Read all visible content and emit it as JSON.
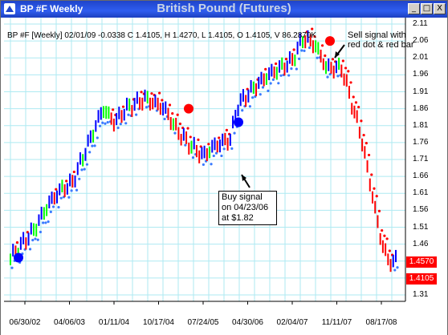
{
  "window": {
    "name": "BP #F Weekly",
    "title": "British Pound (Futures)",
    "buttons": {
      "minimize": "_",
      "maximize": "□",
      "close": "X"
    }
  },
  "info_line": "BP #F [Weekly] 02/01/09 -0.0338 C 1.4105, H 1.4270, L 1.4105, O 1.4105, V 86.2870K",
  "annotations": {
    "sell": [
      "Sell signal with",
      "red dot & red bar"
    ],
    "buy": [
      "Buy signal",
      "on 04/23/06",
      "at $1.82"
    ]
  },
  "price_badges": [
    "1.4570",
    "1.4105"
  ],
  "colors": {
    "up": "#0000ff",
    "down": "#ff0000",
    "neutral": "#00ff00",
    "grid": "#aeeaf2",
    "titlebar": "#2a54e8"
  },
  "chart_data": {
    "type": "bar",
    "ylabels": [
      "2.11",
      "2.06",
      "2.01",
      "1.96",
      "1.91",
      "1.86",
      "1.81",
      "1.76",
      "1.71",
      "1.66",
      "1.61",
      "1.56",
      "1.51",
      "1.46",
      "1.41",
      "1.36",
      "1.31"
    ],
    "xlabels": [
      "06/30/02",
      "04/06/03",
      "01/11/04",
      "10/17/04",
      "07/24/05",
      "04/30/06",
      "02/04/07",
      "11/11/07",
      "08/17/08"
    ],
    "ylim": [
      1.31,
      2.11
    ],
    "grid": true,
    "signals": [
      {
        "type": "buy",
        "date": "04/23/06",
        "price": 1.82
      },
      {
        "type": "sell",
        "date": "11/11/07",
        "price": 2.06
      }
    ],
    "series_key": [
      {
        "t": 0.0,
        "p": 1.42
      },
      {
        "t": 0.06,
        "p": 1.5
      },
      {
        "t": 0.1,
        "p": 1.58
      },
      {
        "t": 0.13,
        "p": 1.62
      },
      {
        "t": 0.16,
        "p": 1.64
      },
      {
        "t": 0.2,
        "p": 1.75
      },
      {
        "t": 0.24,
        "p": 1.86
      },
      {
        "t": 0.27,
        "p": 1.82
      },
      {
        "t": 0.3,
        "p": 1.86
      },
      {
        "t": 0.35,
        "p": 1.89
      },
      {
        "t": 0.4,
        "p": 1.86
      },
      {
        "t": 0.43,
        "p": 1.8
      },
      {
        "t": 0.46,
        "p": 1.76
      },
      {
        "t": 0.5,
        "p": 1.72
      },
      {
        "t": 0.53,
        "p": 1.75
      },
      {
        "t": 0.57,
        "p": 1.77
      },
      {
        "t": 0.59,
        "p": 1.87
      },
      {
        "t": 0.63,
        "p": 1.92
      },
      {
        "t": 0.67,
        "p": 1.96
      },
      {
        "t": 0.7,
        "p": 1.98
      },
      {
        "t": 0.73,
        "p": 2.0
      },
      {
        "t": 0.76,
        "p": 2.07
      },
      {
        "t": 0.79,
        "p": 2.05
      },
      {
        "t": 0.82,
        "p": 1.98
      },
      {
        "t": 0.86,
        "p": 1.98
      },
      {
        "t": 0.88,
        "p": 1.9
      },
      {
        "t": 0.91,
        "p": 1.78
      },
      {
        "t": 0.94,
        "p": 1.6
      },
      {
        "t": 0.96,
        "p": 1.48
      },
      {
        "t": 0.98,
        "p": 1.41
      }
    ]
  }
}
